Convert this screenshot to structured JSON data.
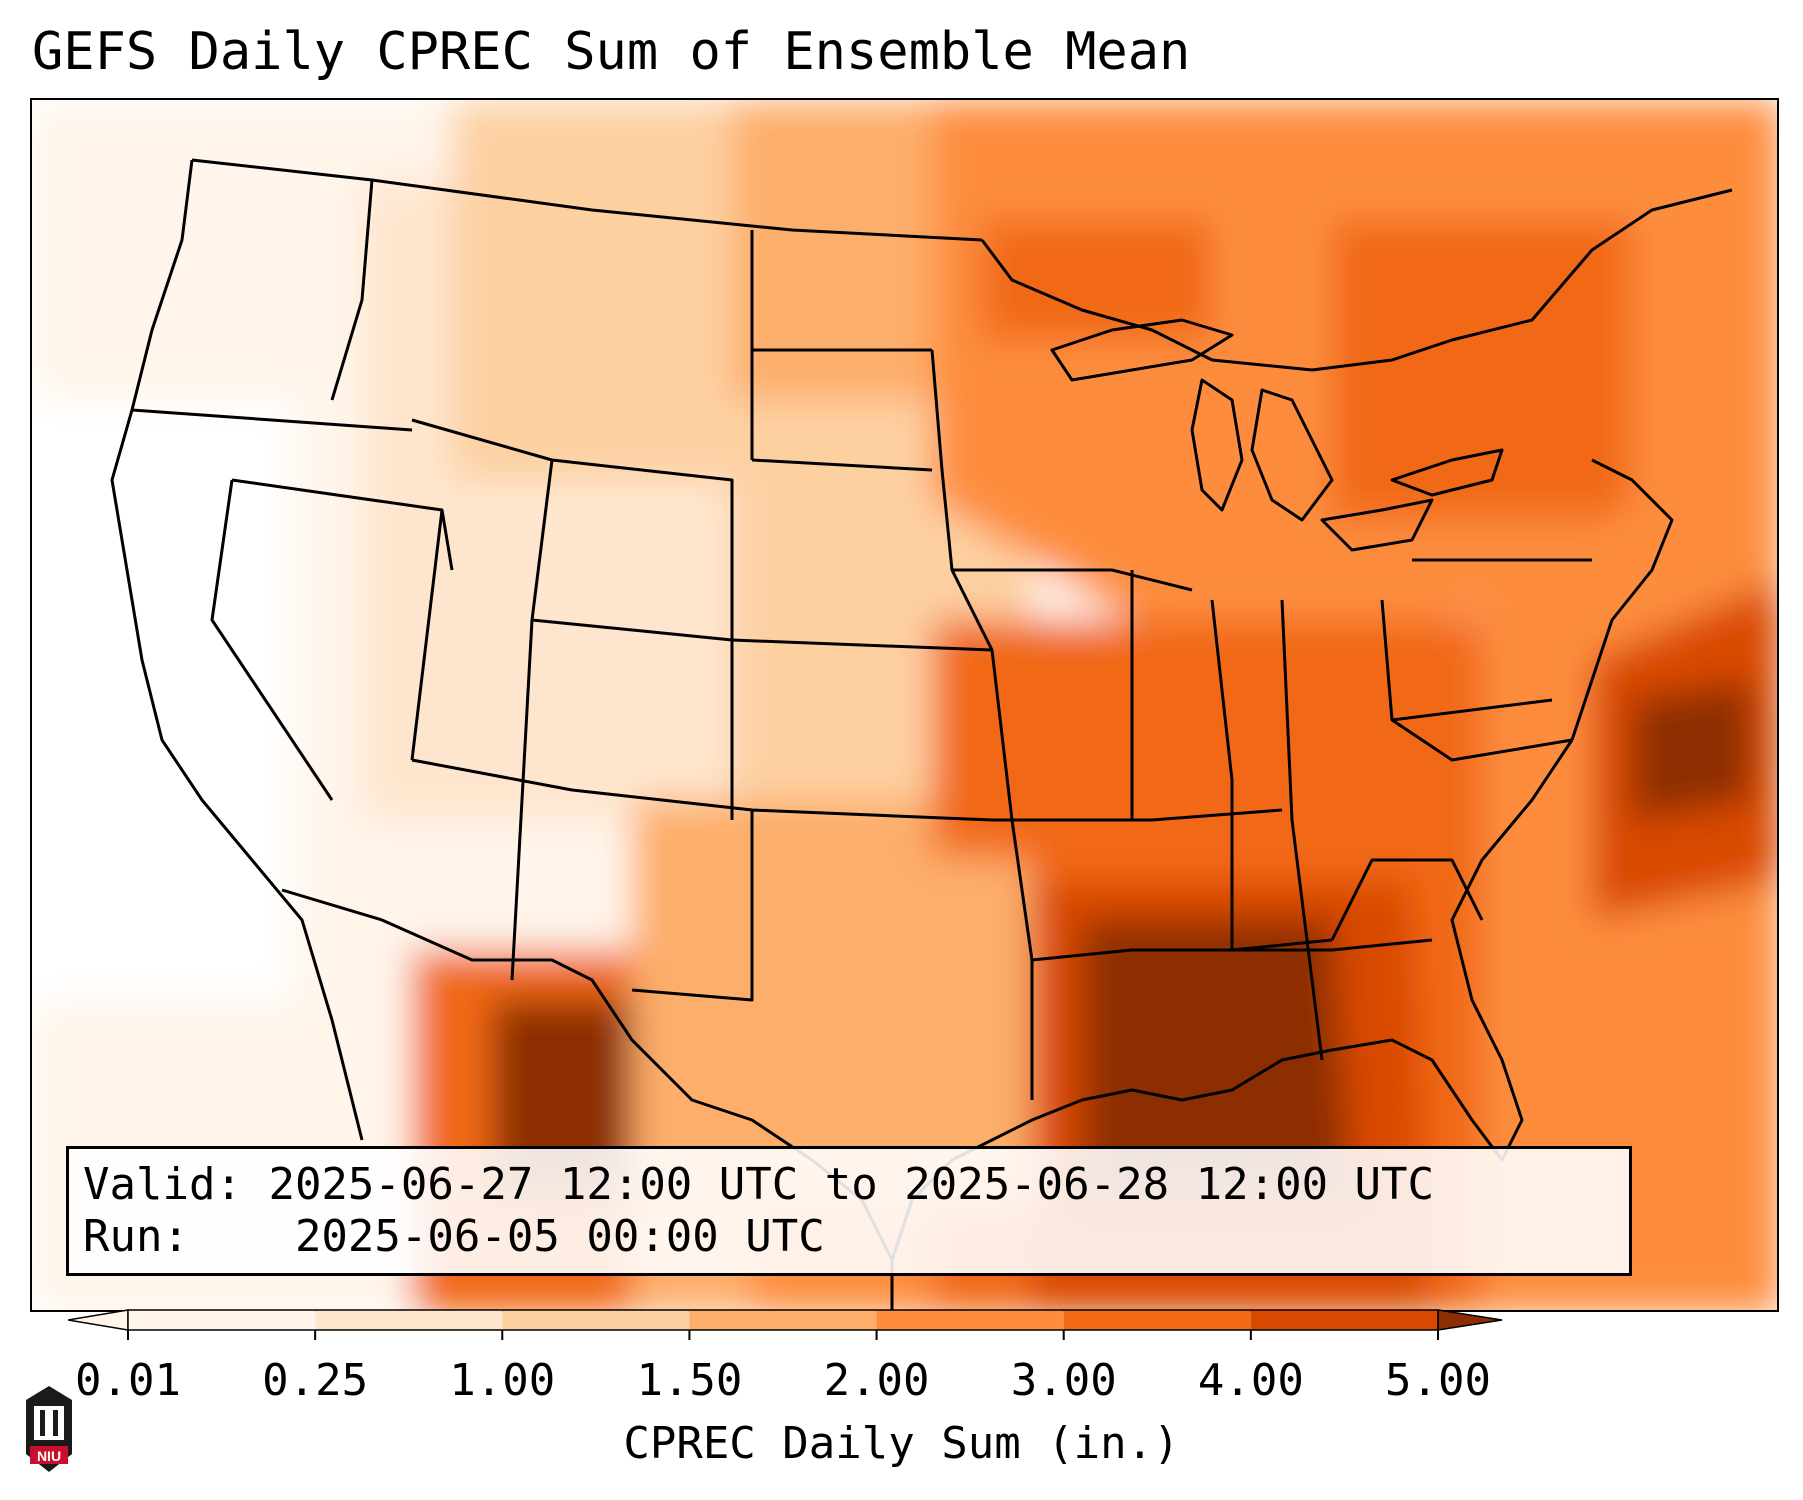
{
  "title": "GEFS Daily CPREC Sum of Ensemble Mean",
  "info": {
    "valid_label": "Valid:",
    "valid_value": "2025-06-27 12:00 UTC to 2025-06-28 12:00 UTC",
    "run_label": "Run:",
    "run_value": "2025-06-05 00:00 UTC"
  },
  "colorbar": {
    "label": "CPREC Daily Sum (in.)",
    "ticks": [
      "0.01",
      "0.25",
      "1.00",
      "1.50",
      "2.00",
      "3.00",
      "4.00",
      "5.00"
    ],
    "colors": [
      "#fff5eb",
      "#fee6ce",
      "#fdd0a2",
      "#fdae6b",
      "#fd8d3c",
      "#f16913",
      "#d94801",
      "#8c2d04"
    ],
    "extend": "both"
  },
  "map": {
    "projection": "Lambert conformal, contiguous United States",
    "field": "gridded daily convective precipitation shading",
    "colors": {
      "very_light": "#fff5eb",
      "light": "#fee6ce",
      "light_med": "#fdd0a2",
      "medium": "#fdae6b",
      "orange": "#fd8d3c",
      "dark_orange": "#f16913",
      "red_orange": "#d94801",
      "brown": "#8c2d04",
      "state_lines": "#000000"
    }
  },
  "logo": {
    "text": "NIU",
    "color": "#c8102e"
  }
}
